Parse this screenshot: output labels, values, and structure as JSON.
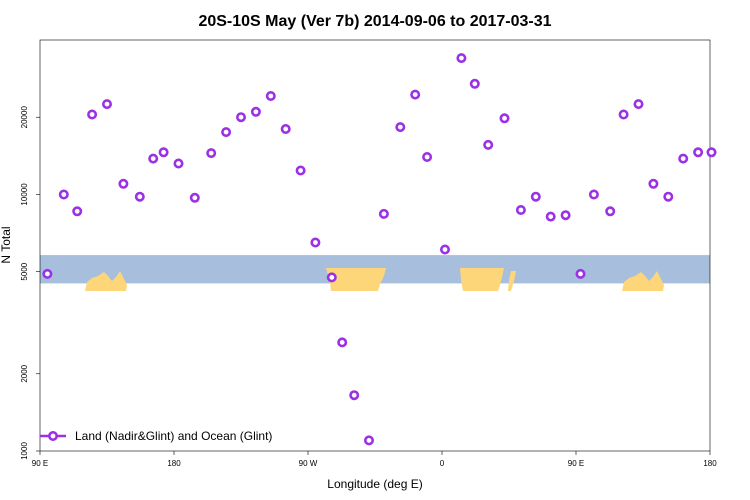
{
  "chart_data": {
    "type": "scatter",
    "title": "20S-10S May (Ver 7b)   2014-09-06 to 2017-03-31",
    "xlabel": "Longitude (deg E)",
    "ylabel": "N Total",
    "x_scale": "linear",
    "y_scale": "log",
    "xlim": [
      90,
      540
    ],
    "ylim": [
      1000,
      40000
    ],
    "x_ticks": [
      {
        "value": 90,
        "label": "90 E"
      },
      {
        "value": 180,
        "label": "180"
      },
      {
        "value": 270,
        "label": "90 W"
      },
      {
        "value": 360,
        "label": "0"
      },
      {
        "value": 450,
        "label": "90 E"
      },
      {
        "value": 540,
        "label": "180"
      }
    ],
    "y_ticks": [
      {
        "value": 1000,
        "label": "1000"
      },
      {
        "value": 2000,
        "label": "2000"
      },
      {
        "value": 5000,
        "label": "5000"
      },
      {
        "value": 10000,
        "label": "10000"
      },
      {
        "value": 20000,
        "label": "20000"
      }
    ],
    "map_band": {
      "y_range": [
        4500,
        5800
      ],
      "ocean_color": "#a7bedd",
      "land_color": "#fdd67a"
    },
    "colors": {
      "marker": "#9b30e6",
      "marker_fill": "#ffffff"
    },
    "legend": {
      "position": "bottom-left",
      "label": "Land (Nadir&Glint) and Ocean (Glint)"
    },
    "series": [
      {
        "name": "Land (Nadir&Glint) and Ocean (Glint)",
        "x": [
          95,
          106,
          115,
          125,
          135,
          146,
          157,
          166,
          173,
          183,
          194,
          205,
          215,
          225,
          235,
          245,
          255,
          265,
          275,
          286,
          293,
          301,
          311,
          321,
          332,
          342,
          350,
          362,
          373,
          382,
          391,
          402,
          413,
          423,
          433,
          443,
          453,
          462,
          473,
          482,
          492,
          502,
          512,
          522,
          532,
          541
        ],
        "y": [
          4900,
          10000,
          8600,
          20500,
          22500,
          11000,
          9800,
          13800,
          14600,
          13200,
          9700,
          14500,
          17500,
          20000,
          21000,
          24200,
          18000,
          12400,
          6500,
          4750,
          2650,
          1650,
          1100,
          8400,
          18300,
          24500,
          14000,
          6100,
          34000,
          27000,
          15600,
          19800,
          8700,
          9800,
          8200,
          8300,
          4900,
          10000,
          8600,
          20500,
          22500,
          11000,
          9800,
          13800,
          14600,
          14600
        ]
      }
    ]
  }
}
